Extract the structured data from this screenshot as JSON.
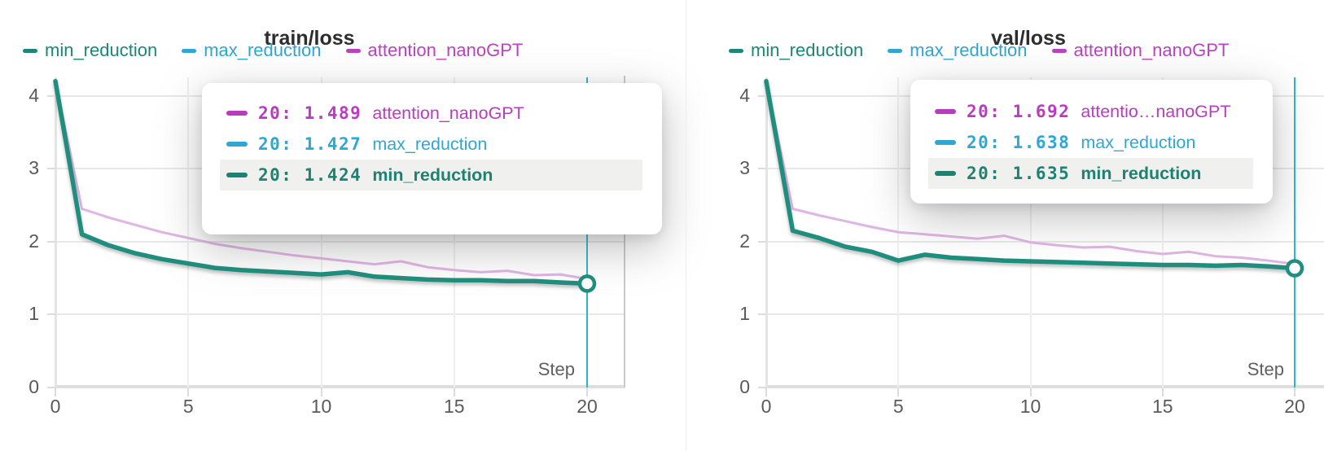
{
  "colors": {
    "crosshair": "#2ab7c6",
    "grid": "#e8e8e8",
    "axis_text": "#5a5a5a",
    "tooltip_highlight": "#f0f0ee",
    "min_reduction": "#1f8e7e",
    "max_reduction": "#31a6d2",
    "attention_line": "#e0b4e4",
    "attention_text": "#ba44c0"
  },
  "chart_data": [
    {
      "type": "line",
      "title": "train/loss",
      "xlabel": "Step",
      "ylabel": "",
      "x": [
        0,
        1,
        2,
        3,
        4,
        5,
        6,
        7,
        8,
        9,
        10,
        11,
        12,
        13,
        14,
        15,
        16,
        17,
        18,
        19,
        20
      ],
      "x_ticks": [
        0,
        5,
        10,
        15,
        20
      ],
      "y_ticks": [
        0,
        1,
        2,
        3,
        4
      ],
      "xlim": [
        0,
        20
      ],
      "ylim": [
        0,
        4.25
      ],
      "grid": true,
      "legend_position": "top",
      "series": [
        {
          "name": "min_reduction",
          "color": "#1f8e7e",
          "legend_color": "#1c8678",
          "values": [
            4.2,
            2.1,
            1.95,
            1.84,
            1.76,
            1.7,
            1.64,
            1.61,
            1.59,
            1.57,
            1.55,
            1.58,
            1.52,
            1.5,
            1.48,
            1.47,
            1.47,
            1.46,
            1.46,
            1.44,
            1.424
          ]
        },
        {
          "name": "max_reduction",
          "color": "#31a6d2",
          "legend_color": "#31a6d2",
          "values": [
            4.21,
            2.11,
            1.96,
            1.85,
            1.77,
            1.71,
            1.65,
            1.62,
            1.6,
            1.58,
            1.56,
            1.59,
            1.53,
            1.51,
            1.49,
            1.48,
            1.48,
            1.47,
            1.47,
            1.45,
            1.427
          ]
        },
        {
          "name": "attention_nanoGPT",
          "color": "#e0b4e4",
          "legend_color": "#ba44c0",
          "values": [
            4.2,
            2.45,
            2.33,
            2.23,
            2.13,
            2.05,
            1.97,
            1.91,
            1.86,
            1.81,
            1.77,
            1.73,
            1.69,
            1.73,
            1.65,
            1.61,
            1.58,
            1.6,
            1.54,
            1.55,
            1.489
          ]
        }
      ],
      "cursor": {
        "step": 20,
        "marker_series": "min_reduction"
      }
    },
    {
      "type": "line",
      "title": "val/loss",
      "xlabel": "Step",
      "ylabel": "",
      "x": [
        0,
        1,
        2,
        3,
        4,
        5,
        6,
        7,
        8,
        9,
        10,
        11,
        12,
        13,
        14,
        15,
        16,
        17,
        18,
        19,
        20
      ],
      "x_ticks": [
        0,
        5,
        10,
        15,
        20
      ],
      "y_ticks": [
        0,
        1,
        2,
        3,
        4
      ],
      "xlim": [
        0,
        20
      ],
      "ylim": [
        0,
        4.25
      ],
      "grid": true,
      "legend_position": "top",
      "series": [
        {
          "name": "min_reduction",
          "color": "#1f8e7e",
          "legend_color": "#1c8678",
          "values": [
            4.2,
            2.15,
            2.05,
            1.93,
            1.86,
            1.74,
            1.82,
            1.78,
            1.76,
            1.74,
            1.73,
            1.72,
            1.71,
            1.7,
            1.69,
            1.68,
            1.68,
            1.67,
            1.68,
            1.66,
            1.635
          ]
        },
        {
          "name": "max_reduction",
          "color": "#31a6d2",
          "legend_color": "#31a6d2",
          "values": [
            4.21,
            2.16,
            2.06,
            1.94,
            1.87,
            1.75,
            1.83,
            1.79,
            1.77,
            1.75,
            1.74,
            1.73,
            1.72,
            1.71,
            1.7,
            1.69,
            1.69,
            1.68,
            1.69,
            1.665,
            1.638
          ]
        },
        {
          "name": "attention_nanoGPT",
          "color": "#e0b4e4",
          "legend_color": "#ba44c0",
          "values": [
            4.2,
            2.45,
            2.36,
            2.28,
            2.2,
            2.13,
            2.1,
            2.07,
            2.04,
            2.08,
            1.99,
            1.95,
            1.92,
            1.93,
            1.87,
            1.83,
            1.86,
            1.8,
            1.78,
            1.74,
            1.692
          ]
        }
      ],
      "cursor": {
        "step": 20,
        "marker_series": "min_reduction"
      }
    }
  ],
  "tooltips": [
    {
      "rows": [
        {
          "step": "20:",
          "value": "1.489",
          "name": "attention_nanoGPT",
          "color": "#b93cbe",
          "highlight": false
        },
        {
          "step": "20:",
          "value": "1.427",
          "name": "max_reduction",
          "color": "#2fa7d3",
          "highlight": false
        },
        {
          "step": "20:",
          "value": "1.424",
          "name": "min_reduction",
          "color": "#1f8172",
          "highlight": true
        }
      ]
    },
    {
      "rows": [
        {
          "step": "20:",
          "value": "1.692",
          "name": "attentio…nanoGPT",
          "color": "#b93cbe",
          "highlight": false
        },
        {
          "step": "20:",
          "value": "1.638",
          "name": "max_reduction",
          "color": "#2fa7d3",
          "highlight": false
        },
        {
          "step": "20:",
          "value": "1.635",
          "name": "min_reduction",
          "color": "#1f8172",
          "highlight": true
        }
      ]
    }
  ]
}
